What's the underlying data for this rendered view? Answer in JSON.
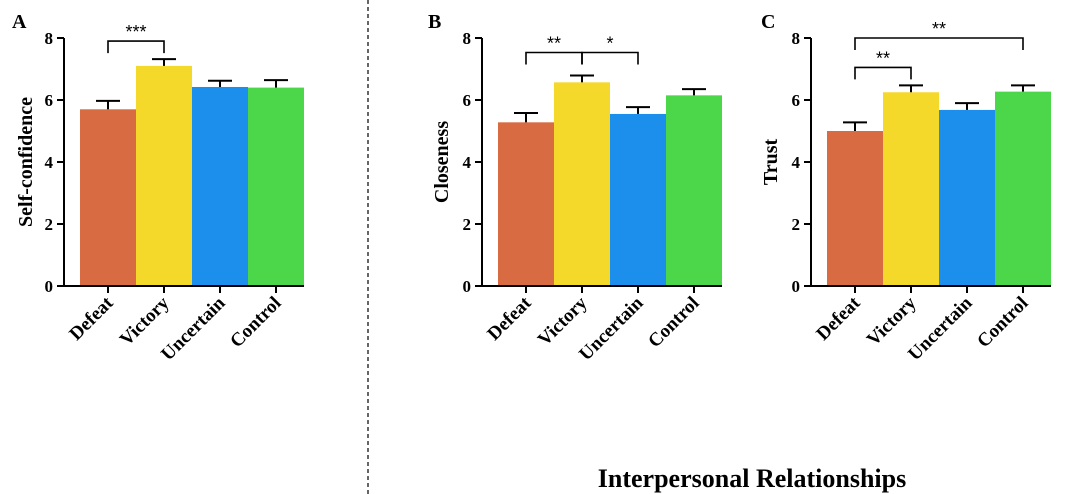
{
  "figure": {
    "footer": "Interpersonal Relationships"
  },
  "chart_data": [
    {
      "type": "bar",
      "panel": "A",
      "ylabel": "Self-confidence",
      "categories": [
        "Defeat",
        "Victory",
        "Uncertain",
        "Control"
      ],
      "values": [
        5.7,
        7.1,
        6.42,
        6.4
      ],
      "errors": [
        0.27,
        0.22,
        0.2,
        0.24
      ],
      "colors": [
        "#D96B43",
        "#F5D92A",
        "#1C8EEB",
        "#4CD64A"
      ],
      "ylim": [
        0,
        8
      ],
      "yticks": [
        0,
        2,
        4,
        6,
        8
      ],
      "significance": [
        {
          "from": 0,
          "to": 1,
          "label": "***"
        }
      ]
    },
    {
      "type": "bar",
      "panel": "B",
      "ylabel": "Closeness",
      "categories": [
        "Defeat",
        "Victory",
        "Uncertain",
        "Control"
      ],
      "values": [
        5.28,
        6.57,
        5.55,
        6.15
      ],
      "errors": [
        0.3,
        0.22,
        0.22,
        0.2
      ],
      "colors": [
        "#D96B43",
        "#F5D92A",
        "#1C8EEB",
        "#4CD64A"
      ],
      "ylim": [
        0,
        8
      ],
      "yticks": [
        0,
        2,
        4,
        6,
        8
      ],
      "significance": [
        {
          "from": 0,
          "to": 1,
          "label": "**"
        },
        {
          "from": 1,
          "to": 2,
          "label": "*"
        }
      ]
    },
    {
      "type": "bar",
      "panel": "C",
      "ylabel": "Trust",
      "categories": [
        "Defeat",
        "Victory",
        "Uncertain",
        "Control"
      ],
      "values": [
        5.0,
        6.25,
        5.68,
        6.27
      ],
      "errors": [
        0.28,
        0.22,
        0.22,
        0.2
      ],
      "colors": [
        "#D96B43",
        "#F5D92A",
        "#1C8EEB",
        "#4CD64A"
      ],
      "ylim": [
        0,
        8
      ],
      "yticks": [
        0,
        2,
        4,
        6,
        8
      ],
      "significance": [
        {
          "from": 0,
          "to": 1,
          "label": "**"
        },
        {
          "from": 0,
          "to": 3,
          "label": "**"
        }
      ]
    }
  ]
}
